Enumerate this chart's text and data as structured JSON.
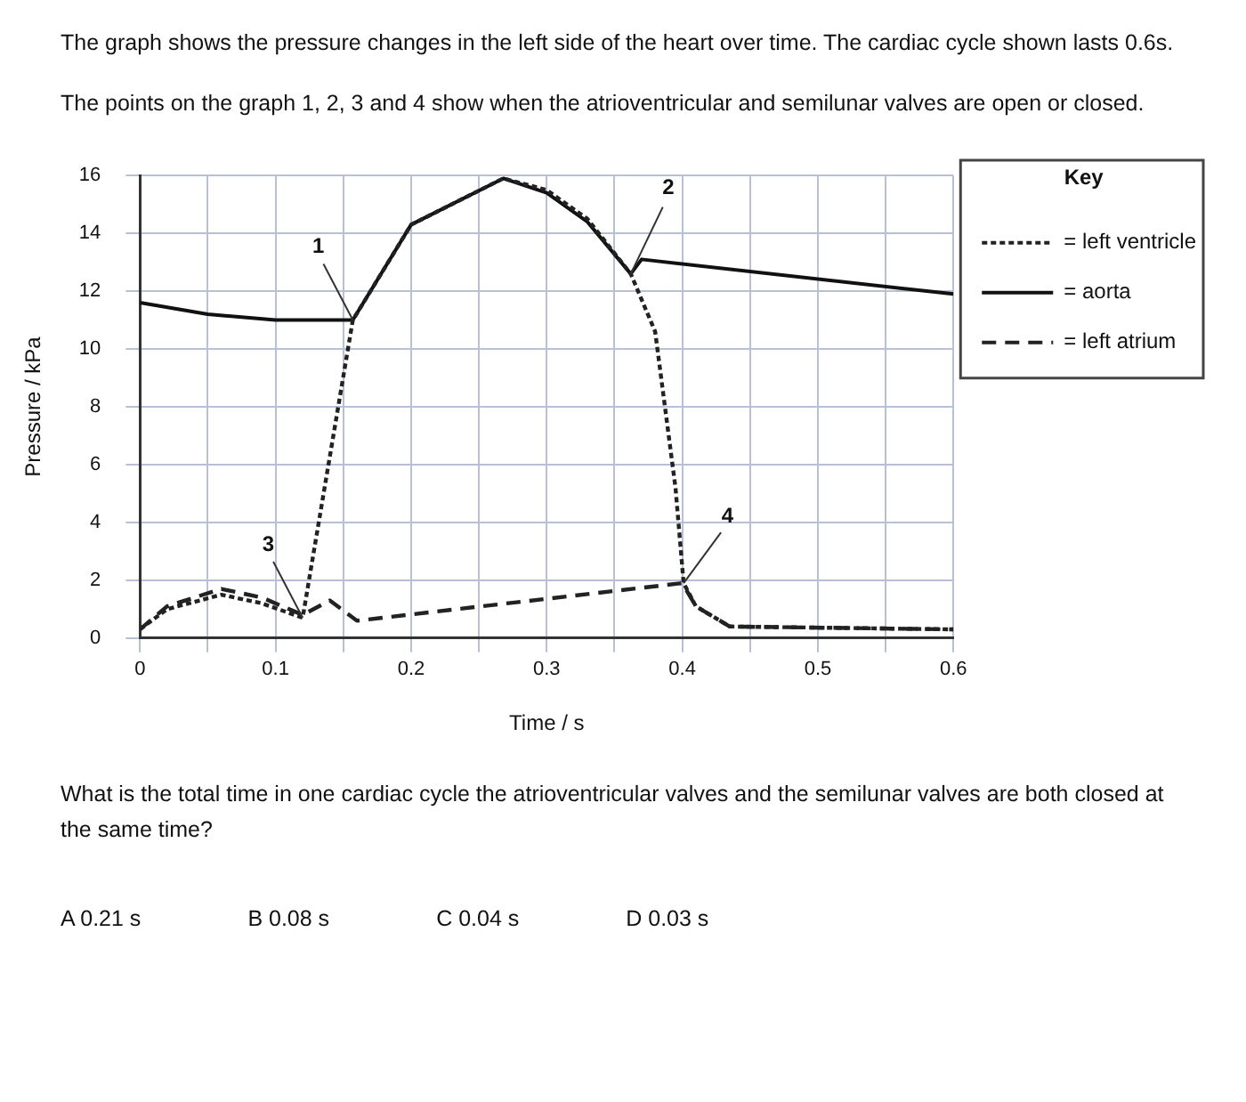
{
  "chart_data": {
    "type": "line",
    "title": "The graph shows the pressure changes in the left side of the heart over time. The cardiac cycle shown lasts 0.6s.",
    "subtitle": "The points on the graph 1, 2, 3 and 4 show when the atrioventricular and semilunar valves are open or closed.",
    "xlabel": "Time / s",
    "ylabel": "Pressure / kPa",
    "legend_title": "Key",
    "legend": "right",
    "grid": true,
    "xlim": [
      0,
      0.6
    ],
    "xticks": [
      0,
      {
        "value": 0.05,
        "label": null
      },
      0.1,
      {
        "value": 0.15,
        "label": null
      },
      0.2,
      {
        "value": 0.25,
        "label": null
      },
      0.3,
      {
        "value": 0.35,
        "label": null
      },
      0.4,
      {
        "value": 0.45,
        "label": null
      },
      0.5,
      {
        "value": 0.55,
        "label": null
      },
      0.6
    ],
    "ylim": [
      0,
      16
    ],
    "yticks": [
      0,
      2,
      4,
      6,
      8,
      10,
      12,
      14,
      16
    ],
    "series": [
      {
        "name": "= left ventricle",
        "color": "#222222",
        "line_style": "dotted",
        "x": [
          0,
          0.02,
          0.06,
          0.09,
          0.12,
          0.157,
          0.2,
          0.268,
          0.3,
          0.33,
          0.362,
          0.38,
          0.395,
          0.401,
          0.41,
          0.435,
          0.6
        ],
        "values": [
          0.3,
          1.0,
          1.5,
          1.2,
          0.7,
          11.0,
          14.3,
          15.9,
          15.5,
          14.5,
          12.6,
          10.6,
          5.2,
          1.9,
          1.1,
          0.4,
          0.3
        ]
      },
      {
        "name": "= aorta",
        "color": "#111111",
        "line_style": "solid",
        "x": [
          0,
          0.05,
          0.1,
          0.157,
          0.2,
          0.268,
          0.3,
          0.33,
          0.362,
          0.37,
          0.6
        ],
        "values": [
          11.6,
          11.2,
          11.0,
          11.0,
          14.3,
          15.9,
          15.4,
          14.4,
          12.6,
          13.1,
          11.9
        ]
      },
      {
        "name": "= left atrium",
        "color": "#222222",
        "line_style": "dashed",
        "x": [
          0,
          0.02,
          0.06,
          0.09,
          0.12,
          0.14,
          0.16,
          0.4,
          0.41,
          0.435,
          0.6
        ],
        "values": [
          0.3,
          1.1,
          1.7,
          1.4,
          0.8,
          1.3,
          0.6,
          1.9,
          1.1,
          0.4,
          0.3
        ]
      }
    ],
    "annotations": [
      {
        "text": "1",
        "x": 0.157,
        "y": 11.0
      },
      {
        "text": "2",
        "x": 0.362,
        "y": 12.6
      },
      {
        "text": "3",
        "x": 0.12,
        "y": 0.7
      },
      {
        "text": "4",
        "x": 0.401,
        "y": 1.9
      },
      "What is the total time in one cardiac cycle the atrioventricular valves and the semilunar valves are both closed at the same time?",
      "A 0.21 s",
      "B 0.08 s",
      "C 0.04 s",
      "D 0.03 s"
    ]
  }
}
